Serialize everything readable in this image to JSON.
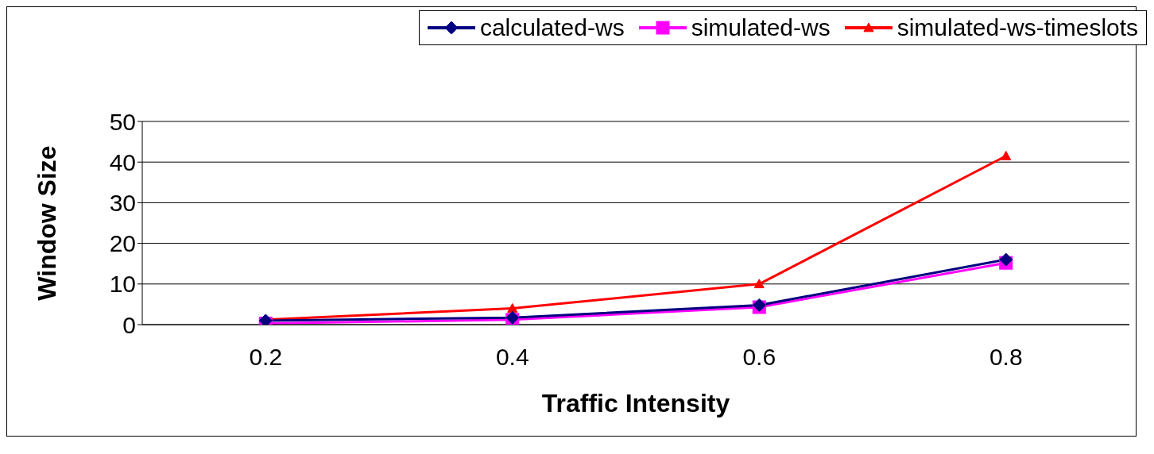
{
  "chart_data": {
    "type": "line",
    "xlabel": "Traffic Intensity",
    "ylabel": "Window Size",
    "categories": [
      "0.2",
      "0.4",
      "0.6",
      "0.8"
    ],
    "series": [
      {
        "name": "calculated-ws",
        "color": "#000080",
        "marker": "diamond",
        "values": [
          1,
          1.7,
          4.8,
          16
        ]
      },
      {
        "name": "simulated-ws",
        "color": "#ff00ff",
        "marker": "square",
        "values": [
          0.3,
          1.2,
          4.3,
          15.2
        ]
      },
      {
        "name": "simulated-ws-timeslots",
        "color": "#ff0000",
        "marker": "triangle",
        "values": [
          1.2,
          4,
          10,
          41.5
        ]
      }
    ],
    "ylim": [
      0,
      50
    ],
    "yticks": [
      0,
      10,
      20,
      30,
      40,
      50
    ],
    "grid": "y",
    "legend": "top"
  }
}
